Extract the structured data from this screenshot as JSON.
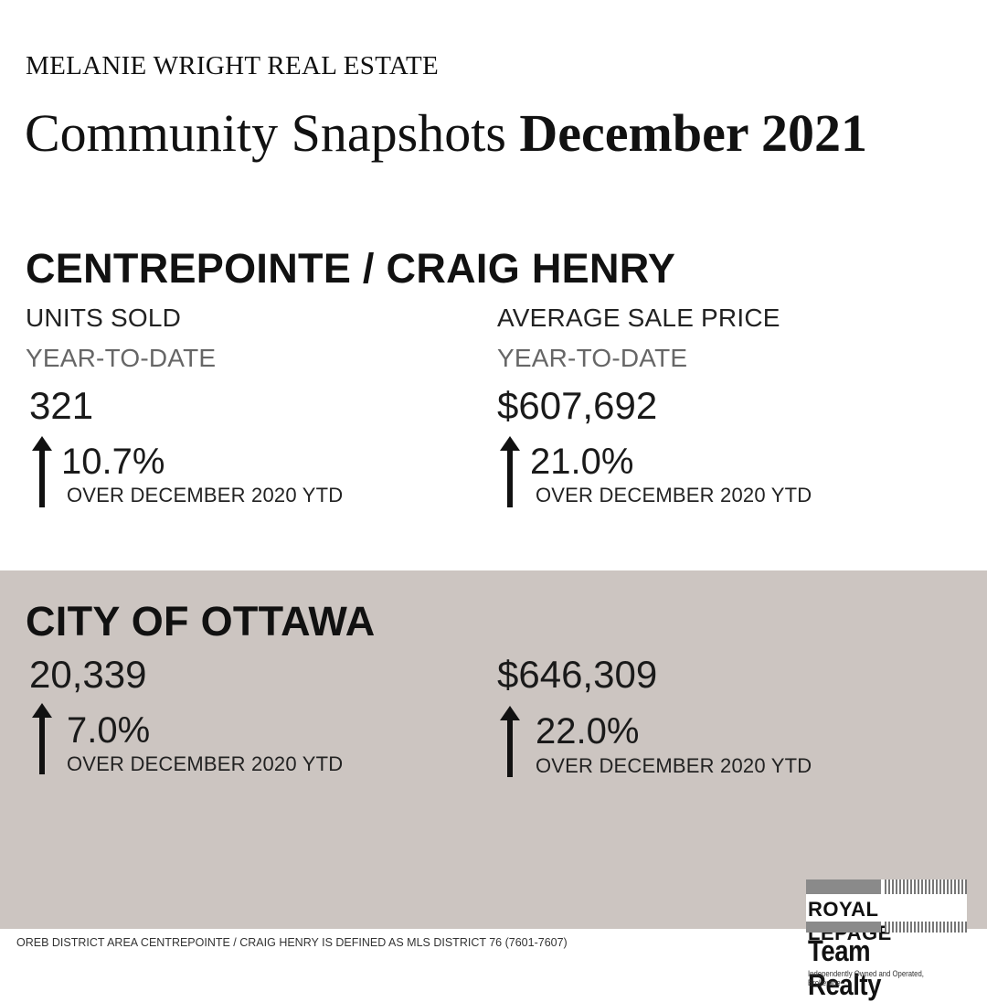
{
  "header": {
    "brand": "MELANIE WRIGHT REAL ESTATE",
    "title": "Community Snapshots",
    "title_bold": "December 2021"
  },
  "community": {
    "name": "CENTREPOINTE / CRAIG HENRY",
    "units": {
      "label": "UNITS SOLD",
      "period": "YEAR-TO-DATE",
      "value": "321",
      "change": "10.7%",
      "comparison": "OVER DECEMBER 2020 YTD"
    },
    "price": {
      "label": "AVERAGE SALE PRICE",
      "period": "YEAR-TO-DATE",
      "value": "$607,692",
      "change": "21.0%",
      "comparison": "OVER DECEMBER 2020 YTD"
    }
  },
  "city": {
    "name": "CITY OF OTTAWA",
    "units": {
      "value": "20,339",
      "change": "7.0%",
      "comparison": "OVER DECEMBER 2020 YTD"
    },
    "price": {
      "value": "$646,309",
      "change": "22.0%",
      "comparison": "OVER DECEMBER 2020 YTD"
    }
  },
  "footnote": "OREB DISTRICT AREA CENTREPOINTE / CRAIG HENRY IS DEFINED AS MLS DISTRICT 76 (7601-7607)",
  "logo": {
    "line1": "ROYAL LEPAGE",
    "line2": "Team Realty",
    "line3": "Independently Owned and Operated, Brokerage"
  },
  "colors": {
    "band": "#ccc5c1",
    "text": "#111111"
  },
  "icons": {
    "trend": "up-arrow-icon"
  }
}
